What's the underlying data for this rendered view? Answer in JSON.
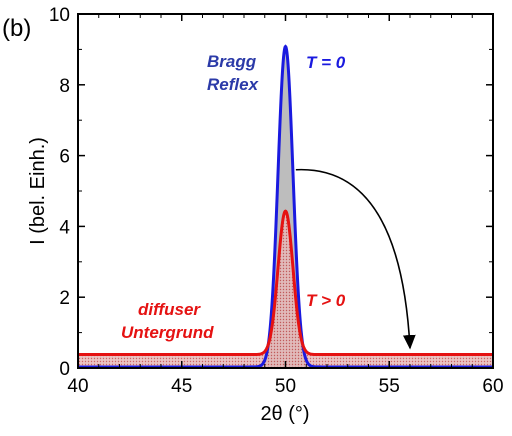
{
  "chart_data": {
    "type": "line",
    "panel_label": "(b)",
    "xlabel": "2θ (°)",
    "ylabel": "I (bel. Einh.)",
    "xlim": [
      40,
      60
    ],
    "ylim": [
      0,
      10
    ],
    "xticks": [
      "40",
      "45",
      "50",
      "55",
      "60"
    ],
    "yticks": [
      "0",
      "2",
      "4",
      "6",
      "8",
      "10"
    ],
    "series": [
      {
        "name": "T = 0",
        "color": "#1a1adf",
        "peak_center": 50.0,
        "peak_height": 9.05,
        "peak_sigma": 0.36,
        "background": 0.03
      },
      {
        "name": "T > 0",
        "color": "#e51212",
        "peak_center": 50.0,
        "peak_height": 4.05,
        "peak_sigma": 0.36,
        "background": 0.38
      }
    ],
    "annotations": {
      "bragg_line1": "Bragg",
      "bragg_line2": "Reflex",
      "t_zero": "T = 0",
      "t_pos": "T > 0",
      "diffuse_line1": "diffuser",
      "diffuse_line2": "Untergrund"
    },
    "arrow": {
      "from": [
        50.5,
        5.6
      ],
      "to": [
        56.0,
        0.4
      ]
    },
    "colors": {
      "annotation_blue": "#2b3aa8",
      "annotation_red": "#e51212",
      "fill_gray": "#bdbdbd",
      "fill_red": "#d89a9a"
    }
  }
}
